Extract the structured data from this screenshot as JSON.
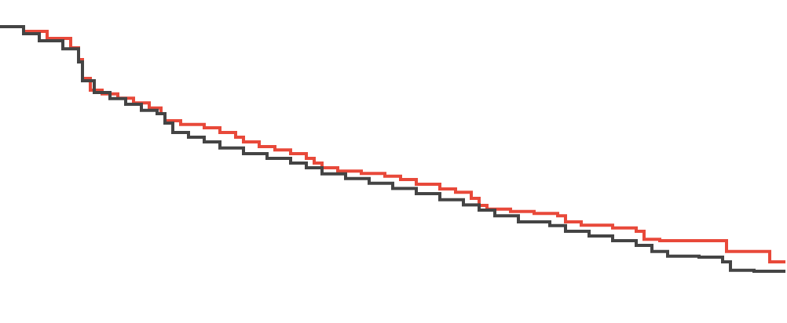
{
  "chart_data": {
    "type": "line",
    "step": true,
    "grid": false,
    "xlim": [
      0,
      100
    ],
    "ylim": [
      0,
      1
    ],
    "series": [
      {
        "color": "#e8493a",
        "points": [
          [
            0,
            1.0
          ],
          [
            3,
            0.99
          ],
          [
            6,
            0.975
          ],
          [
            9,
            0.955
          ],
          [
            10,
            0.93
          ],
          [
            10.5,
            0.89
          ],
          [
            11.5,
            0.865
          ],
          [
            13,
            0.857
          ],
          [
            15,
            0.848
          ],
          [
            17,
            0.838
          ],
          [
            19,
            0.827
          ],
          [
            20.5,
            0.815
          ],
          [
            21,
            0.8
          ],
          [
            23,
            0.792
          ],
          [
            26,
            0.785
          ],
          [
            28,
            0.775
          ],
          [
            30,
            0.765
          ],
          [
            31,
            0.755
          ],
          [
            33,
            0.745
          ],
          [
            35,
            0.738
          ],
          [
            37,
            0.73
          ],
          [
            39,
            0.72
          ],
          [
            40,
            0.71
          ],
          [
            41,
            0.7
          ],
          [
            43,
            0.693
          ],
          [
            46,
            0.688
          ],
          [
            49,
            0.682
          ],
          [
            51,
            0.675
          ],
          [
            53,
            0.665
          ],
          [
            56,
            0.655
          ],
          [
            58,
            0.648
          ],
          [
            60,
            0.635
          ],
          [
            61,
            0.62
          ],
          [
            62,
            0.612
          ],
          [
            65,
            0.607
          ],
          [
            68,
            0.603
          ],
          [
            71,
            0.598
          ],
          [
            72,
            0.585
          ],
          [
            74,
            0.578
          ],
          [
            78,
            0.572
          ],
          [
            81,
            0.565
          ],
          [
            82,
            0.548
          ],
          [
            84,
            0.545
          ],
          [
            88,
            0.545
          ],
          [
            92,
            0.545
          ],
          [
            92.5,
            0.522
          ],
          [
            95,
            0.522
          ],
          [
            97,
            0.522
          ],
          [
            98,
            0.5
          ],
          [
            100,
            0.5
          ]
        ]
      },
      {
        "color": "#444444",
        "points": [
          [
            0,
            1.0
          ],
          [
            3,
            0.985
          ],
          [
            5,
            0.97
          ],
          [
            8,
            0.953
          ],
          [
            10,
            0.925
          ],
          [
            10.5,
            0.885
          ],
          [
            12,
            0.86
          ],
          [
            14,
            0.847
          ],
          [
            16,
            0.835
          ],
          [
            18,
            0.822
          ],
          [
            20,
            0.815
          ],
          [
            21,
            0.795
          ],
          [
            22,
            0.775
          ],
          [
            24,
            0.765
          ],
          [
            26,
            0.755
          ],
          [
            28,
            0.742
          ],
          [
            31,
            0.73
          ],
          [
            34,
            0.72
          ],
          [
            37,
            0.71
          ],
          [
            39,
            0.7
          ],
          [
            41,
            0.687
          ],
          [
            44,
            0.677
          ],
          [
            47,
            0.667
          ],
          [
            50,
            0.656
          ],
          [
            53,
            0.645
          ],
          [
            56,
            0.632
          ],
          [
            59,
            0.621
          ],
          [
            61,
            0.61
          ],
          [
            63,
            0.598
          ],
          [
            66,
            0.585
          ],
          [
            70,
            0.577
          ],
          [
            72,
            0.565
          ],
          [
            75,
            0.555
          ],
          [
            78,
            0.545
          ],
          [
            81,
            0.535
          ],
          [
            83,
            0.522
          ],
          [
            85,
            0.512
          ],
          [
            89,
            0.51
          ],
          [
            92,
            0.5
          ],
          [
            93,
            0.482
          ],
          [
            96,
            0.48
          ],
          [
            100,
            0.48
          ]
        ]
      }
    ]
  }
}
